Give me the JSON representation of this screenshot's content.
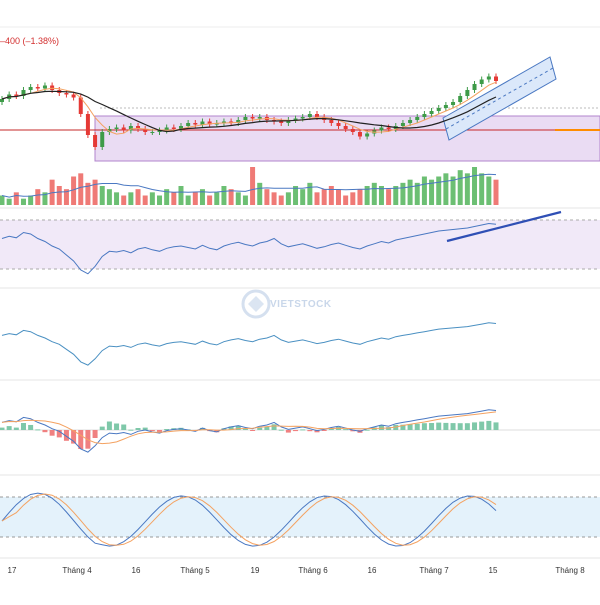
{
  "header": {
    "change_text": "–400 (–1.38%)"
  },
  "watermark": {
    "text": "VIETSTOCK"
  },
  "colors": {
    "up": "#3e9b48",
    "down": "#e53935",
    "ma_fast": "#f4a261",
    "ma_slow": "#222222",
    "box_fill": "#e8d7f1",
    "box_stroke": "#9b59b6",
    "support_line": "#c62828",
    "channel": "#4a78c2",
    "trend_line": "#2f4fb5",
    "indicator_line": "#4a78c2",
    "signal_line": "#f4a261",
    "rsi_band": "#efe6f7",
    "stoch_band": "#e3f2fb",
    "forecast": "#ff8c00"
  },
  "chart_data": {
    "type": "candlestick",
    "x_ticks": [
      "17",
      "Tháng 4",
      "16",
      "Tháng 5",
      "19",
      "Tháng 6",
      "16",
      "Tháng 7",
      "15",
      "Tháng 8"
    ],
    "panels": [
      "price",
      "volume",
      "rsi",
      "oscillator",
      "macd",
      "stochastic"
    ],
    "price_closes": [
      82,
      85,
      84,
      88,
      90,
      89,
      91,
      88,
      86,
      85,
      83,
      72,
      58,
      50,
      60,
      62,
      63,
      61,
      64,
      62,
      60,
      60,
      61,
      63,
      62,
      64,
      66,
      65,
      67,
      65,
      66,
      67,
      66,
      68,
      70,
      69,
      70,
      68,
      67,
      66,
      68,
      69,
      70,
      72,
      70,
      68,
      66,
      64,
      62,
      60,
      57,
      59,
      61,
      63,
      62,
      64,
      66,
      68,
      70,
      72,
      74,
      76,
      78,
      80,
      84,
      88,
      92,
      95,
      97,
      94
    ],
    "volume_levels": [
      3,
      2,
      4,
      2,
      3,
      5,
      4,
      8,
      6,
      5,
      9,
      10,
      7,
      8,
      6,
      5,
      4,
      3,
      4,
      5,
      3,
      4,
      3,
      5,
      4,
      6,
      3,
      4,
      5,
      3,
      4,
      6,
      5,
      4,
      3,
      12,
      7,
      5,
      4,
      3,
      4,
      6,
      5,
      7,
      4,
      5,
      6,
      5,
      3,
      4,
      5,
      6,
      7,
      6,
      5,
      6,
      7,
      8,
      7,
      9,
      8,
      9,
      10,
      9,
      11,
      10,
      12,
      10,
      9,
      8
    ],
    "rsi_values": [
      62,
      65,
      63,
      70,
      68,
      62,
      58,
      52,
      48,
      40,
      32,
      20,
      15,
      25,
      38,
      45,
      44,
      46,
      43,
      48,
      50,
      47,
      45,
      49,
      51,
      52,
      50,
      48,
      53,
      49,
      47,
      52,
      55,
      57,
      54,
      52,
      56,
      58,
      62,
      55,
      51,
      53,
      55,
      52,
      49,
      51,
      54,
      56,
      53,
      50,
      48,
      52,
      55,
      58,
      56,
      60,
      62,
      64,
      66,
      68,
      70,
      72,
      73,
      74,
      75,
      76,
      78,
      80,
      82,
      81
    ]
  }
}
